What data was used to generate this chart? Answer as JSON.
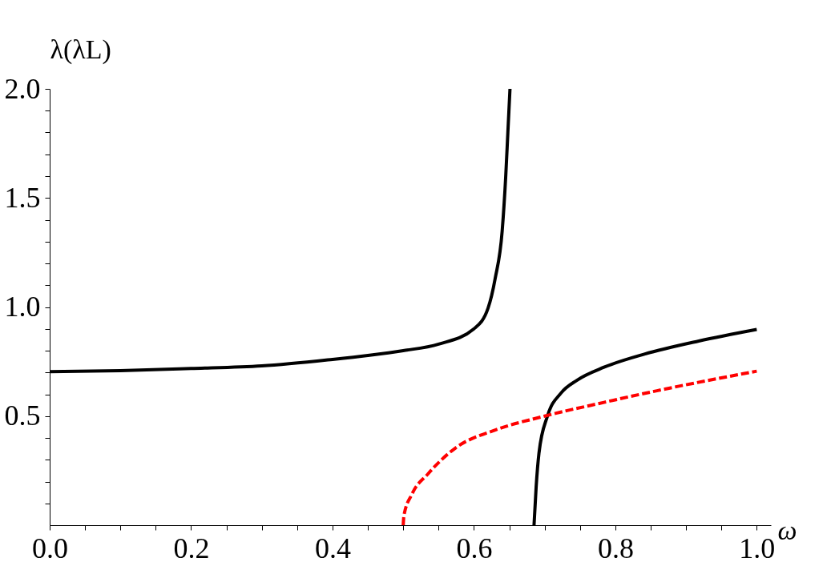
{
  "chart_data": {
    "type": "line",
    "xlabel": "ω",
    "ylabel": "λ(λL)",
    "xlim": [
      0,
      1.02
    ],
    "ylim": [
      0,
      2.0
    ],
    "xticks": [
      {
        "value": 0,
        "label": "0.0"
      },
      {
        "value": 0.05,
        "label": null
      },
      {
        "value": 0.1,
        "label": null
      },
      {
        "value": 0.15,
        "label": null
      },
      {
        "value": 0.2,
        "label": "0.2"
      },
      {
        "value": 0.25,
        "label": null
      },
      {
        "value": 0.3,
        "label": null
      },
      {
        "value": 0.35,
        "label": null
      },
      {
        "value": 0.4,
        "label": "0.4"
      },
      {
        "value": 0.45,
        "label": null
      },
      {
        "value": 0.5,
        "label": null
      },
      {
        "value": 0.55,
        "label": null
      },
      {
        "value": 0.6,
        "label": "0.6"
      },
      {
        "value": 0.65,
        "label": null
      },
      {
        "value": 0.7,
        "label": null
      },
      {
        "value": 0.75,
        "label": null
      },
      {
        "value": 0.8,
        "label": "0.8"
      },
      {
        "value": 0.85,
        "label": null
      },
      {
        "value": 0.9,
        "label": null
      },
      {
        "value": 0.95,
        "label": null
      },
      {
        "value": 1.0,
        "label": "1.0"
      }
    ],
    "yticks": [
      {
        "value": 0.1,
        "label": null
      },
      {
        "value": 0.2,
        "label": null
      },
      {
        "value": 0.3,
        "label": null
      },
      {
        "value": 0.4,
        "label": null
      },
      0.5,
      {
        "value": 0.6,
        "label": null
      },
      {
        "value": 0.7,
        "label": null
      },
      {
        "value": 0.8,
        "label": null
      },
      {
        "value": 0.9,
        "label": null
      },
      {
        "value": 1.0,
        "label": "1.0"
      },
      {
        "value": 1.1,
        "label": null
      },
      {
        "value": 1.2,
        "label": null
      },
      {
        "value": 1.3,
        "label": null
      },
      {
        "value": 1.4,
        "label": null
      },
      1.5,
      {
        "value": 1.6,
        "label": null
      },
      {
        "value": 1.7,
        "label": null
      },
      {
        "value": 1.8,
        "label": null
      },
      {
        "value": 1.9,
        "label": null
      },
      {
        "value": 2.0,
        "label": "2.0"
      }
    ],
    "grid": false,
    "marker": "none",
    "series": [
      {
        "color": "#000000",
        "line_style": "solid",
        "x": [
          0,
          0.1,
          0.2,
          0.3,
          0.4,
          0.45,
          0.5,
          0.55,
          0.6,
          0.62,
          0.63,
          0.64,
          0.645,
          0.648,
          0.651
        ],
        "values": [
          0.704,
          0.708,
          0.718,
          0.73,
          0.76,
          0.778,
          0.8,
          0.83,
          0.9,
          0.995,
          1.13,
          1.35,
          1.6,
          1.8,
          2.0
        ]
      },
      {
        "color": "#000000",
        "line_style": "solid",
        "x": [
          0.685,
          0.688,
          0.692,
          0.704,
          0.723,
          0.746,
          0.784,
          0.841,
          0.918,
          1.0
        ],
        "values": [
          0.0,
          0.175,
          0.33,
          0.5,
          0.605,
          0.665,
          0.724,
          0.784,
          0.844,
          0.897
        ]
      },
      {
        "color": "#ff0000",
        "line_style": "dashed",
        "x": [
          0.5,
          0.501,
          0.512,
          0.535,
          0.574,
          0.631,
          0.7,
          0.784,
          0.86,
          1.0
        ],
        "values": [
          0.0,
          0.044,
          0.14,
          0.235,
          0.354,
          0.437,
          0.5,
          0.563,
          0.617,
          0.706
        ]
      }
    ]
  }
}
